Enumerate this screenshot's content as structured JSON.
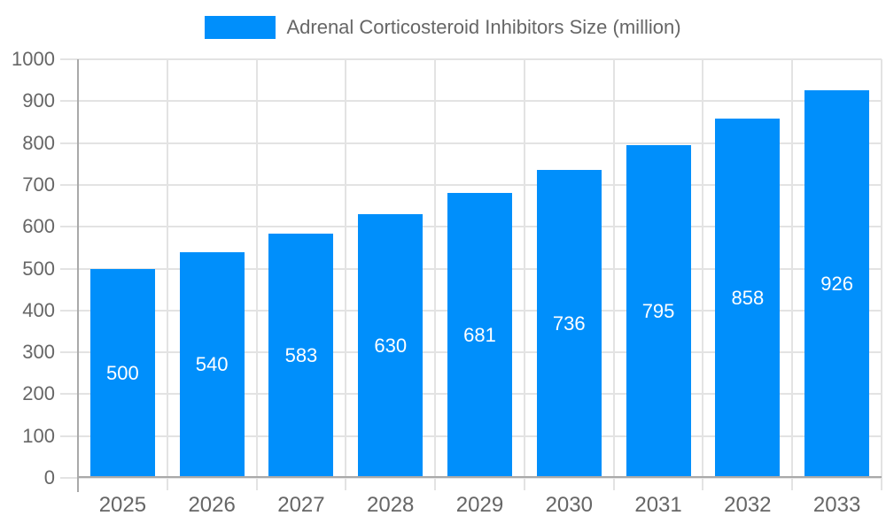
{
  "chart_data": {
    "type": "bar",
    "title": "Adrenal Corticosteroid Inhibitors Size (million)",
    "series_name": "Adrenal Corticosteroid Inhibitors Size (million)",
    "categories": [
      "2025",
      "2026",
      "2027",
      "2028",
      "2029",
      "2030",
      "2031",
      "2032",
      "2033"
    ],
    "values": [
      500,
      540,
      583,
      630,
      681,
      736,
      795,
      858,
      926
    ],
    "yticks": [
      0,
      100,
      200,
      300,
      400,
      500,
      600,
      700,
      800,
      900,
      1000
    ],
    "ylim": [
      0,
      1000
    ],
    "xlabel": "",
    "ylabel": "",
    "grid": true,
    "legend_position": "top",
    "colors": {
      "bar": "#008FFB",
      "bar_label": "#FFFFFF",
      "axis_text": "#666666",
      "grid_line": "#E3E3E3",
      "axis_line": "#A9A9A9",
      "background": "#FFFFFF"
    }
  }
}
